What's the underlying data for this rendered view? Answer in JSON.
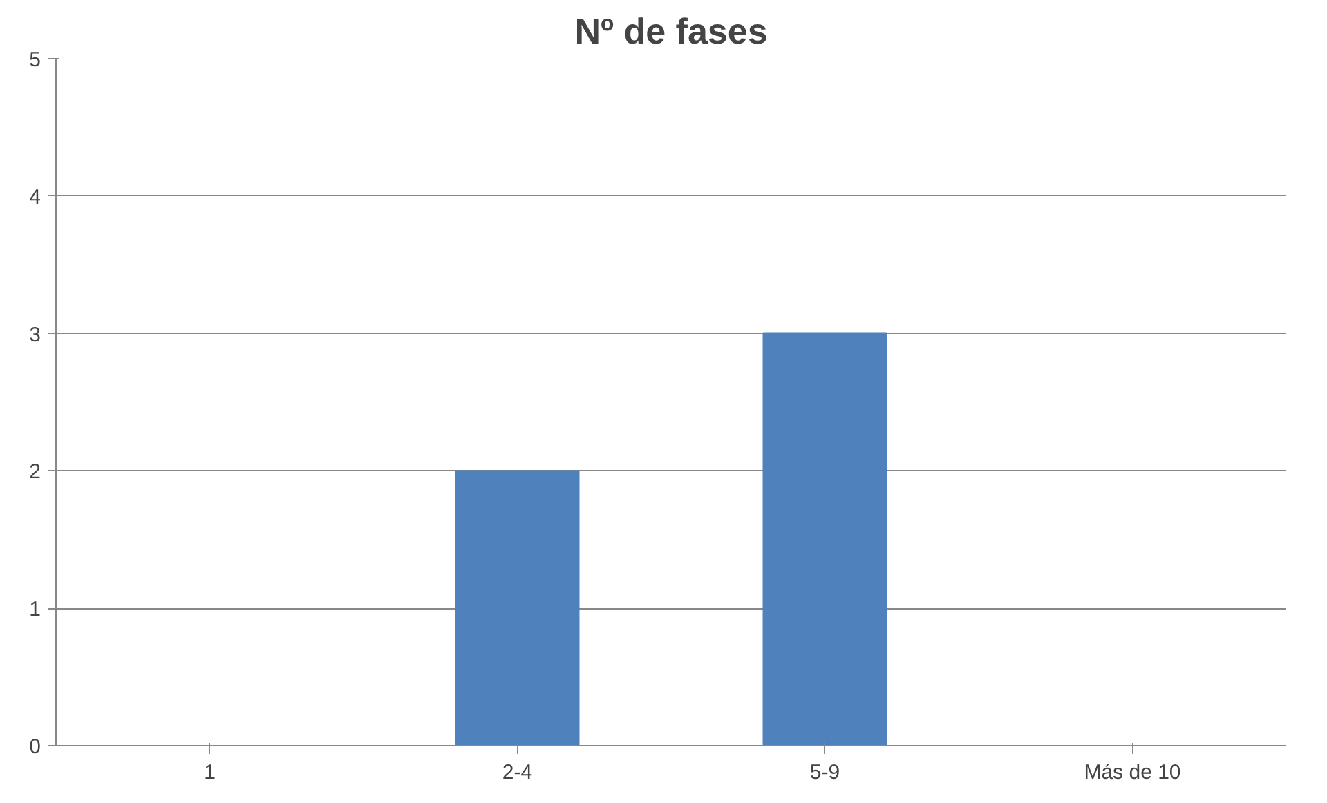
{
  "chart_data": {
    "type": "bar",
    "title": "Nº de fases",
    "categories": [
      "1",
      "2-4",
      "5-9",
      "Más de 10"
    ],
    "values": [
      0,
      2,
      3,
      0
    ],
    "color": "#4f81bd",
    "ylim": [
      0,
      5
    ],
    "yticks": [
      0,
      1,
      2,
      3,
      4,
      5
    ],
    "grid": "y"
  }
}
